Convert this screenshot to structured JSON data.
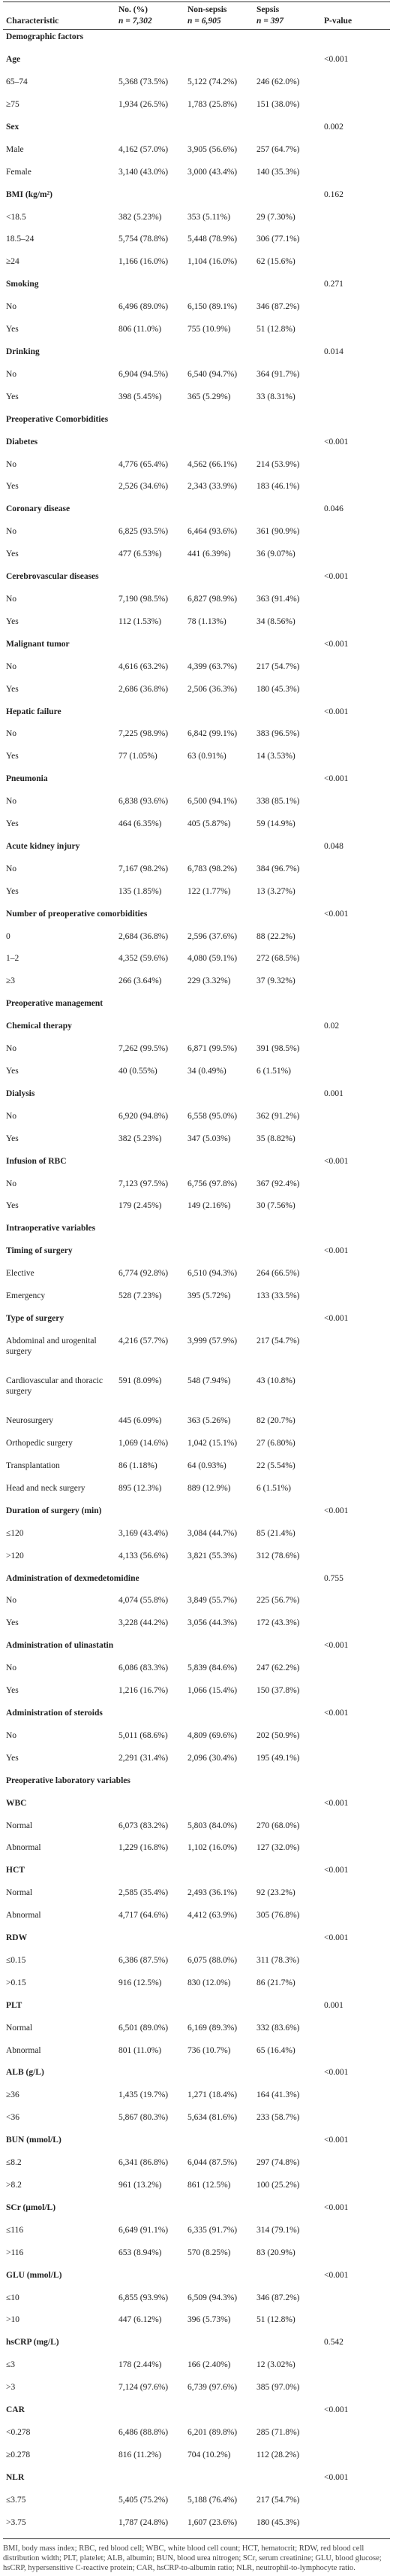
{
  "table": {
    "header": [
      {
        "title": "Characteristic"
      },
      {
        "title": "No. (%)",
        "n": "n = 7,302"
      },
      {
        "title": "Non-sepsis",
        "n": "n = 6,905"
      },
      {
        "title": "Sepsis",
        "n": "n = 397"
      },
      {
        "title": "P-value"
      }
    ],
    "sections": [
      {
        "title": "Demographic factors",
        "groups": [
          {
            "name": "Age",
            "p": "<0.001",
            "rows": [
              [
                "65–74",
                "5,368 (73.5%)",
                "5,122 (74.2%)",
                "246 (62.0%)"
              ],
              [
                "≥75",
                "1,934 (26.5%)",
                "1,783 (25.8%)",
                "151 (38.0%)"
              ]
            ]
          },
          {
            "name": "Sex",
            "p": "0.002",
            "rows": [
              [
                "Male",
                "4,162 (57.0%)",
                "3,905 (56.6%)",
                "257 (64.7%)"
              ],
              [
                "Female",
                "3,140 (43.0%)",
                "3,000 (43.4%)",
                "140 (35.3%)"
              ]
            ]
          },
          {
            "name": "BMI (kg/m²)",
            "p": "0.162",
            "rows": [
              [
                "<18.5",
                "382 (5.23%)",
                "353 (5.11%)",
                "29 (7.30%)"
              ],
              [
                "18.5–24",
                "5,754 (78.8%)",
                "5,448 (78.9%)",
                "306 (77.1%)"
              ],
              [
                "≥24",
                "1,166 (16.0%)",
                "1,104 (16.0%)",
                "62 (15.6%)"
              ]
            ]
          },
          {
            "name": "Smoking",
            "p": "0.271",
            "rows": [
              [
                "No",
                "6,496 (89.0%)",
                "6,150 (89.1%)",
                "346 (87.2%)"
              ],
              [
                "Yes",
                "806 (11.0%)",
                "755 (10.9%)",
                "51 (12.8%)"
              ]
            ]
          },
          {
            "name": "Drinking",
            "p": "0.014",
            "rows": [
              [
                "No",
                "6,904 (94.5%)",
                "6,540 (94.7%)",
                "364 (91.7%)"
              ],
              [
                "Yes",
                "398 (5.45%)",
                "365 (5.29%)",
                "33 (8.31%)"
              ]
            ]
          }
        ]
      },
      {
        "title": "Preoperative Comorbidities",
        "groups": [
          {
            "name": "Diabetes",
            "p": "<0.001",
            "rows": [
              [
                "No",
                "4,776 (65.4%)",
                "4,562 (66.1%)",
                "214 (53.9%)"
              ],
              [
                "Yes",
                "2,526 (34.6%)",
                "2,343 (33.9%)",
                "183 (46.1%)"
              ]
            ]
          },
          {
            "name": "Coronary disease",
            "p": "0.046",
            "rows": [
              [
                "No",
                "6,825 (93.5%)",
                "6,464 (93.6%)",
                "361 (90.9%)"
              ],
              [
                "Yes",
                "477 (6.53%)",
                "441 (6.39%)",
                "36 (9.07%)"
              ]
            ]
          },
          {
            "name": "Cerebrovascular diseases",
            "p": "<0.001",
            "rows": [
              [
                "No",
                "7,190 (98.5%)",
                "6,827 (98.9%)",
                "363 (91.4%)"
              ],
              [
                "Yes",
                "112 (1.53%)",
                "78 (1.13%)",
                "34 (8.56%)"
              ]
            ]
          },
          {
            "name": "Malignant tumor",
            "p": "<0.001",
            "rows": [
              [
                "No",
                "4,616 (63.2%)",
                "4,399 (63.7%)",
                "217 (54.7%)"
              ],
              [
                "Yes",
                "2,686 (36.8%)",
                "2,506 (36.3%)",
                "180 (45.3%)"
              ]
            ]
          },
          {
            "name": "Hepatic failure",
            "p": "<0.001",
            "rows": [
              [
                "No",
                "7,225 (98.9%)",
                "6,842 (99.1%)",
                "383 (96.5%)"
              ],
              [
                "Yes",
                "77 (1.05%)",
                "63 (0.91%)",
                "14 (3.53%)"
              ]
            ]
          },
          {
            "name": "Pneumonia",
            "p": "<0.001",
            "rows": [
              [
                "No",
                "6,838 (93.6%)",
                "6,500 (94.1%)",
                "338 (85.1%)"
              ],
              [
                "Yes",
                "464 (6.35%)",
                "405 (5.87%)",
                "59 (14.9%)"
              ]
            ]
          },
          {
            "name": "Acute kidney injury",
            "p": "0.048",
            "rows": [
              [
                "No",
                "7,167 (98.2%)",
                "6,783 (98.2%)",
                "384 (96.7%)"
              ],
              [
                "Yes",
                "135 (1.85%)",
                "122 (1.77%)",
                "13 (3.27%)"
              ]
            ]
          },
          {
            "name": "Number of preoperative comorbidities",
            "p": "<0.001",
            "rows": [
              [
                "0",
                "2,684 (36.8%)",
                "2,596 (37.6%)",
                "88 (22.2%)"
              ],
              [
                "1–2",
                "4,352 (59.6%)",
                "4,080 (59.1%)",
                "272 (68.5%)"
              ],
              [
                "≥3",
                "266 (3.64%)",
                "229 (3.32%)",
                "37 (9.32%)"
              ]
            ]
          }
        ]
      },
      {
        "title": "Preoperative management",
        "groups": [
          {
            "name": "Chemical therapy",
            "p": "0.02",
            "rows": [
              [
                "No",
                "7,262 (99.5%)",
                "6,871 (99.5%)",
                "391 (98.5%)"
              ],
              [
                "Yes",
                "40 (0.55%)",
                "34 (0.49%)",
                "6 (1.51%)"
              ]
            ]
          },
          {
            "name": "Dialysis",
            "p": "0.001",
            "rows": [
              [
                "No",
                "6,920 (94.8%)",
                "6,558 (95.0%)",
                "362 (91.2%)"
              ],
              [
                "Yes",
                "382 (5.23%)",
                "347 (5.03%)",
                "35 (8.82%)"
              ]
            ]
          },
          {
            "name": "Infusion of RBC",
            "p": "<0.001",
            "rows": [
              [
                "No",
                "7,123 (97.5%)",
                "6,756 (97.8%)",
                "367 (92.4%)"
              ],
              [
                "Yes",
                "179 (2.45%)",
                "149 (2.16%)",
                "30 (7.56%)"
              ]
            ]
          }
        ]
      },
      {
        "title": "Intraoperative variables",
        "groups": [
          {
            "name": "Timing of surgery",
            "p": "<0.001",
            "rows": [
              [
                "Elective",
                "6,774 (92.8%)",
                "6,510 (94.3%)",
                "264 (66.5%)"
              ],
              [
                "Emergency",
                "528 (7.23%)",
                "395 (5.72%)",
                "133 (33.5%)"
              ]
            ]
          },
          {
            "name": "Type of surgery",
            "p": "<0.001",
            "rows": [
              [
                "Abdominal and urogenital surgery",
                "4,216 (57.7%)",
                "3,999 (57.9%)",
                "217 (54.7%)"
              ],
              [
                "Cardiovascular and thoracic surgery",
                "591 (8.09%)",
                "548 (7.94%)",
                "43 (10.8%)"
              ],
              [
                "Neurosurgery",
                "445 (6.09%)",
                "363 (5.26%)",
                "82 (20.7%)"
              ],
              [
                "Orthopedic surgery",
                "1,069 (14.6%)",
                "1,042 (15.1%)",
                "27 (6.80%)"
              ],
              [
                "Transplantation",
                "86 (1.18%)",
                "64 (0.93%)",
                "22 (5.54%)"
              ],
              [
                "Head and neck surgery",
                "895 (12.3%)",
                "889 (12.9%)",
                "6 (1.51%)"
              ]
            ]
          },
          {
            "name": "Duration of surgery (min)",
            "p": "<0.001",
            "rows": [
              [
                "≤120",
                "3,169 (43.4%)",
                "3,084 (44.7%)",
                "85 (21.4%)"
              ],
              [
                ">120",
                "4,133 (56.6%)",
                "3,821 (55.3%)",
                "312 (78.6%)"
              ]
            ]
          },
          {
            "name": "Administration of dexmedetomidine",
            "p": "0.755",
            "rows": [
              [
                "No",
                "4,074 (55.8%)",
                "3,849 (55.7%)",
                "225 (56.7%)"
              ],
              [
                "Yes",
                "3,228 (44.2%)",
                "3,056 (44.3%)",
                "172 (43.3%)"
              ]
            ]
          },
          {
            "name": "Administration of ulinastatin",
            "p": "<0.001",
            "rows": [
              [
                "No",
                "6,086 (83.3%)",
                "5,839 (84.6%)",
                "247 (62.2%)"
              ],
              [
                "Yes",
                "1,216 (16.7%)",
                "1,066 (15.4%)",
                "150 (37.8%)"
              ]
            ]
          },
          {
            "name": "Administration of steroids",
            "p": "<0.001",
            "rows": [
              [
                "No",
                "5,011 (68.6%)",
                "4,809 (69.6%)",
                "202 (50.9%)"
              ],
              [
                "Yes",
                "2,291 (31.4%)",
                "2,096 (30.4%)",
                "195 (49.1%)"
              ]
            ]
          }
        ]
      },
      {
        "title": "Preoperative laboratory variables",
        "groups": [
          {
            "name": "WBC",
            "p": "<0.001",
            "rows": [
              [
                "Normal",
                "6,073 (83.2%)",
                "5,803 (84.0%)",
                "270 (68.0%)"
              ],
              [
                "Abnormal",
                "1,229 (16.8%)",
                "1,102 (16.0%)",
                "127 (32.0%)"
              ]
            ]
          },
          {
            "name": "HCT",
            "p": "<0.001",
            "rows": [
              [
                "Normal",
                "2,585 (35.4%)",
                "2,493 (36.1%)",
                "92 (23.2%)"
              ],
              [
                "Abnormal",
                "4,717 (64.6%)",
                "4,412 (63.9%)",
                "305 (76.8%)"
              ]
            ]
          },
          {
            "name": "RDW",
            "p": "<0.001",
            "rows": [
              [
                "≤0.15",
                "6,386 (87.5%)",
                "6,075 (88.0%)",
                "311 (78.3%)"
              ],
              [
                ">0.15",
                "916 (12.5%)",
                "830 (12.0%)",
                "86 (21.7%)"
              ]
            ]
          },
          {
            "name": "PLT",
            "p": "0.001",
            "rows": [
              [
                "Normal",
                "6,501 (89.0%)",
                "6,169 (89.3%)",
                "332 (83.6%)"
              ],
              [
                "Abnormal",
                "801 (11.0%)",
                "736 (10.7%)",
                "65 (16.4%)"
              ]
            ]
          },
          {
            "name": "ALB (g/L)",
            "p": "<0.001",
            "rows": [
              [
                "≥36",
                "1,435 (19.7%)",
                "1,271 (18.4%)",
                "164 (41.3%)"
              ],
              [
                "<36",
                "5,867 (80.3%)",
                "5,634 (81.6%)",
                "233 (58.7%)"
              ]
            ]
          },
          {
            "name": "BUN (mmol/L)",
            "p": "<0.001",
            "rows": [
              [
                "≤8.2",
                "6,341 (86.8%)",
                "6,044 (87.5%)",
                "297 (74.8%)"
              ],
              [
                ">8.2",
                "961 (13.2%)",
                "861 (12.5%)",
                "100 (25.2%)"
              ]
            ]
          },
          {
            "name": "SCr (μmol/L)",
            "p": "<0.001",
            "rows": [
              [
                "≤116",
                "6,649 (91.1%)",
                "6,335 (91.7%)",
                "314 (79.1%)"
              ],
              [
                ">116",
                "653 (8.94%)",
                "570 (8.25%)",
                "83 (20.9%)"
              ]
            ]
          },
          {
            "name": "GLU (mmol/L)",
            "p": "<0.001",
            "rows": [
              [
                "≤10",
                "6,855 (93.9%)",
                "6,509 (94.3%)",
                "346 (87.2%)"
              ],
              [
                ">10",
                "447 (6.12%)",
                "396 (5.73%)",
                "51 (12.8%)"
              ]
            ]
          },
          {
            "name": "hsCRP (mg/L)",
            "p": "0.542",
            "rows": [
              [
                "≤3",
                "178 (2.44%)",
                "166 (2.40%)",
                "12 (3.02%)"
              ],
              [
                ">3",
                "7,124 (97.6%)",
                "6,739 (97.6%)",
                "385 (97.0%)"
              ]
            ]
          },
          {
            "name": "CAR",
            "p": "<0.001",
            "rows": [
              [
                "<0.278",
                "6,486 (88.8%)",
                "6,201 (89.8%)",
                "285 (71.8%)"
              ],
              [
                "≥0.278",
                "816 (11.2%)",
                "704 (10.2%)",
                "112 (28.2%)"
              ]
            ]
          },
          {
            "name": "NLR",
            "p": "<0.001",
            "rows": [
              [
                "≤3.75",
                "5,405 (75.2%)",
                "5,188 (76.4%)",
                "217 (54.7%)"
              ],
              [
                ">3.75",
                "1,787 (24.8%)",
                "1,607 (23.6%)",
                "180 (45.3%)"
              ]
            ]
          }
        ]
      }
    ]
  },
  "footnote": "BMI, body mass index; RBC, red blood cell; WBC, white blood cell count; HCT, hematocrit; RDW, red blood cell distribution width; PLT, platelet; ALB, albumin; BUN, blood urea nitrogen; SCr, serum creatinine; GLU, blood glucose; hsCRP, hypersensitive C-reactive protein; CAR, hsCRP-to-albumin ratio; NLR, neutrophil-to-lymphocyte ratio."
}
